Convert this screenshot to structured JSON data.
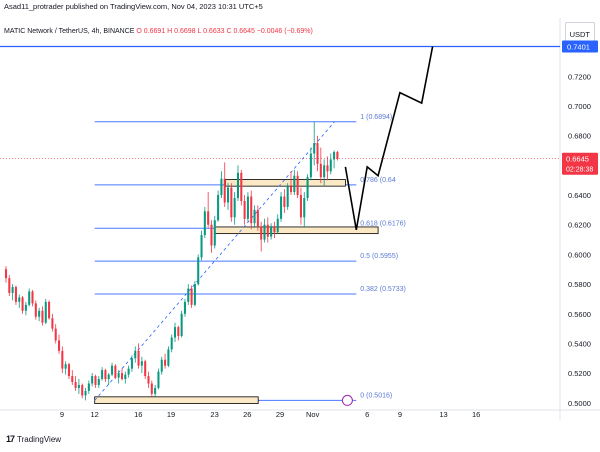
{
  "header": {
    "published_line": "Asad11_protrader published on TradingView.com, Nov 04, 2023 10:31 UTC+5"
  },
  "legend": {
    "symbol": "MATIC Network / TetherUS, 4h, BINANCE",
    "ohlc": "O 0.6691  H 0.6698  L 0.6633  C 0.6645  −0.0046 (−0.69%)"
  },
  "currency": "USDT",
  "footer": {
    "brand": "TradingView"
  },
  "colors": {
    "up": "#089981",
    "down": "#f23645",
    "fib_line": "#2962ff",
    "fib_text": "#5b7bd5",
    "box_fill": "#fbe9c6",
    "box_border": "#000000",
    "projection": "#000000"
  },
  "chart_data": {
    "type": "candlestick",
    "y_axis": {
      "ticks": [
        "0.7200",
        "0.7000",
        "0.6800",
        "0.6600",
        "0.6400",
        "0.6200",
        "0.6000",
        "0.5800",
        "0.5600",
        "0.5400",
        "0.5200",
        "0.5000"
      ],
      "range": [
        0.4985,
        0.7445
      ]
    },
    "x_axis": {
      "ticks": [
        "9",
        "12",
        "16",
        "19",
        "23",
        "26",
        "29",
        "Nov",
        "6",
        "9",
        "13",
        "16"
      ]
    },
    "price_labels": {
      "top_level": "0.7401",
      "current_price": "0.6645",
      "countdown": "02:28:38"
    },
    "fib_levels": [
      {
        "label": "1 (0.6894)",
        "value": 0.6894
      },
      {
        "label": "0.786 (0.6469)",
        "value": 0.6469
      },
      {
        "label": "0.618 (0.6176)",
        "value": 0.6176
      },
      {
        "label": "0.5 (0.5955)",
        "value": 0.5955
      },
      {
        "label": "0.382 (0.5733)",
        "value": 0.5733
      },
      {
        "label": "0 (0.5016)",
        "value": 0.5016
      }
    ],
    "fib_visible_labels": [
      "1 (0.6894)",
      "0.786 (0.64",
      "0.618 (0.6176)",
      "0.5 (0.5955)",
      "0.382 (0.5733)",
      "0 (0.5016)"
    ],
    "horizontal_line": {
      "value": 0.7401
    },
    "zones": [
      {
        "low": 0.614,
        "high": 0.6185,
        "from_date": "Oct 23",
        "to_date": "Nov 7"
      },
      {
        "low": 0.646,
        "high": 0.6505,
        "from_date": "Oct 24",
        "to_date": "Nov 4"
      },
      {
        "low": 0.4995,
        "high": 0.504,
        "from_date": "Oct 12",
        "to_date": "Oct 27"
      }
    ],
    "trend_line": [
      {
        "date": "Oct 12",
        "value": 0.5016
      },
      {
        "date": "Nov 3",
        "value": 0.6894
      }
    ],
    "projection_path": [
      {
        "date": "Nov 4",
        "value": 0.659
      },
      {
        "date": "Nov 5",
        "value": 0.6165
      },
      {
        "date": "Nov 6",
        "value": 0.659
      },
      {
        "date": "Nov 7",
        "value": 0.653
      },
      {
        "date": "Nov 9",
        "value": 0.709
      },
      {
        "date": "Nov 11",
        "value": 0.702
      },
      {
        "date": "Nov 12",
        "value": 0.7401
      }
    ],
    "candles": [
      [
        0.59,
        0.592,
        0.581,
        0.584
      ],
      [
        0.584,
        0.586,
        0.572,
        0.574
      ],
      [
        0.574,
        0.58,
        0.569,
        0.578
      ],
      [
        0.578,
        0.579,
        0.566,
        0.568
      ],
      [
        0.568,
        0.573,
        0.564,
        0.571
      ],
      [
        0.571,
        0.572,
        0.56,
        0.562
      ],
      [
        0.562,
        0.568,
        0.559,
        0.566
      ],
      [
        0.566,
        0.577,
        0.565,
        0.575
      ],
      [
        0.575,
        0.576,
        0.565,
        0.567
      ],
      [
        0.567,
        0.569,
        0.556,
        0.558
      ],
      [
        0.558,
        0.564,
        0.555,
        0.562
      ],
      [
        0.562,
        0.565,
        0.552,
        0.554
      ],
      [
        0.554,
        0.57,
        0.553,
        0.568
      ],
      [
        0.568,
        0.569,
        0.556,
        0.557
      ],
      [
        0.557,
        0.56,
        0.548,
        0.55
      ],
      [
        0.55,
        0.553,
        0.54,
        0.542
      ],
      [
        0.542,
        0.546,
        0.533,
        0.535
      ],
      [
        0.535,
        0.538,
        0.52,
        0.523
      ],
      [
        0.523,
        0.528,
        0.519,
        0.526
      ],
      [
        0.526,
        0.527,
        0.516,
        0.518
      ],
      [
        0.518,
        0.522,
        0.512,
        0.514
      ],
      [
        0.514,
        0.518,
        0.508,
        0.51
      ],
      [
        0.51,
        0.516,
        0.506,
        0.512
      ],
      [
        0.512,
        0.513,
        0.503,
        0.505
      ],
      [
        0.505,
        0.51,
        0.5016,
        0.508
      ],
      [
        0.508,
        0.515,
        0.506,
        0.513
      ],
      [
        0.513,
        0.52,
        0.511,
        0.518
      ],
      [
        0.518,
        0.519,
        0.51,
        0.512
      ],
      [
        0.512,
        0.518,
        0.51,
        0.516
      ],
      [
        0.516,
        0.524,
        0.515,
        0.522
      ],
      [
        0.522,
        0.523,
        0.514,
        0.516
      ],
      [
        0.516,
        0.52,
        0.512,
        0.519
      ],
      [
        0.519,
        0.527,
        0.518,
        0.525
      ],
      [
        0.525,
        0.526,
        0.516,
        0.517
      ],
      [
        0.517,
        0.522,
        0.513,
        0.52
      ],
      [
        0.52,
        0.523,
        0.515,
        0.516
      ],
      [
        0.516,
        0.521,
        0.513,
        0.519
      ],
      [
        0.519,
        0.525,
        0.517,
        0.523
      ],
      [
        0.523,
        0.532,
        0.521,
        0.53
      ],
      [
        0.53,
        0.538,
        0.527,
        0.535
      ],
      [
        0.535,
        0.54,
        0.523,
        0.525
      ],
      [
        0.525,
        0.531,
        0.52,
        0.528
      ],
      [
        0.528,
        0.529,
        0.516,
        0.518
      ],
      [
        0.518,
        0.521,
        0.51,
        0.513
      ],
      [
        0.513,
        0.515,
        0.504,
        0.506
      ],
      [
        0.506,
        0.512,
        0.504,
        0.51
      ],
      [
        0.51,
        0.523,
        0.509,
        0.521
      ],
      [
        0.521,
        0.531,
        0.519,
        0.529
      ],
      [
        0.529,
        0.533,
        0.523,
        0.525
      ],
      [
        0.525,
        0.538,
        0.524,
        0.536
      ],
      [
        0.536,
        0.546,
        0.534,
        0.544
      ],
      [
        0.544,
        0.554,
        0.541,
        0.551
      ],
      [
        0.551,
        0.552,
        0.542,
        0.545
      ],
      [
        0.545,
        0.562,
        0.544,
        0.56
      ],
      [
        0.56,
        0.57,
        0.558,
        0.568
      ],
      [
        0.568,
        0.58,
        0.566,
        0.577
      ],
      [
        0.577,
        0.579,
        0.564,
        0.566
      ],
      [
        0.566,
        0.582,
        0.565,
        0.58
      ],
      [
        0.58,
        0.6,
        0.579,
        0.598
      ],
      [
        0.598,
        0.616,
        0.596,
        0.613
      ],
      [
        0.613,
        0.632,
        0.611,
        0.629
      ],
      [
        0.629,
        0.642,
        0.618,
        0.62
      ],
      [
        0.62,
        0.623,
        0.601,
        0.606
      ],
      [
        0.606,
        0.626,
        0.604,
        0.623
      ],
      [
        0.623,
        0.643,
        0.622,
        0.64
      ],
      [
        0.64,
        0.656,
        0.638,
        0.651
      ],
      [
        0.651,
        0.662,
        0.632,
        0.635
      ],
      [
        0.635,
        0.648,
        0.63,
        0.645
      ],
      [
        0.645,
        0.648,
        0.622,
        0.625
      ],
      [
        0.625,
        0.642,
        0.62,
        0.638
      ],
      [
        0.638,
        0.66,
        0.636,
        0.655
      ],
      [
        0.655,
        0.657,
        0.633,
        0.636
      ],
      [
        0.636,
        0.64,
        0.62,
        0.624
      ],
      [
        0.624,
        0.642,
        0.622,
        0.639
      ],
      [
        0.639,
        0.643,
        0.617,
        0.621
      ],
      [
        0.621,
        0.633,
        0.618,
        0.63
      ],
      [
        0.63,
        0.633,
        0.616,
        0.619
      ],
      [
        0.619,
        0.622,
        0.602,
        0.61
      ],
      [
        0.61,
        0.624,
        0.608,
        0.62
      ],
      [
        0.62,
        0.625,
        0.608,
        0.612
      ],
      [
        0.612,
        0.621,
        0.61,
        0.619
      ],
      [
        0.619,
        0.622,
        0.611,
        0.615
      ],
      [
        0.615,
        0.627,
        0.614,
        0.624
      ],
      [
        0.624,
        0.642,
        0.622,
        0.639
      ],
      [
        0.639,
        0.644,
        0.628,
        0.632
      ],
      [
        0.632,
        0.648,
        0.63,
        0.646
      ],
      [
        0.646,
        0.656,
        0.64,
        0.642
      ],
      [
        0.642,
        0.657,
        0.64,
        0.653
      ],
      [
        0.653,
        0.656,
        0.638,
        0.64
      ],
      [
        0.64,
        0.645,
        0.62,
        0.625
      ],
      [
        0.625,
        0.642,
        0.618,
        0.638
      ],
      [
        0.638,
        0.654,
        0.636,
        0.652
      ],
      [
        0.652,
        0.672,
        0.65,
        0.668
      ],
      [
        0.668,
        0.6894,
        0.66,
        0.675
      ],
      [
        0.675,
        0.68,
        0.656,
        0.661
      ],
      [
        0.661,
        0.672,
        0.648,
        0.652
      ],
      [
        0.652,
        0.664,
        0.646,
        0.66
      ],
      [
        0.66,
        0.666,
        0.65,
        0.656
      ],
      [
        0.656,
        0.668,
        0.654,
        0.664
      ],
      [
        0.664,
        0.67,
        0.658,
        0.669
      ],
      [
        0.6691,
        0.6698,
        0.6633,
        0.6645
      ]
    ]
  }
}
